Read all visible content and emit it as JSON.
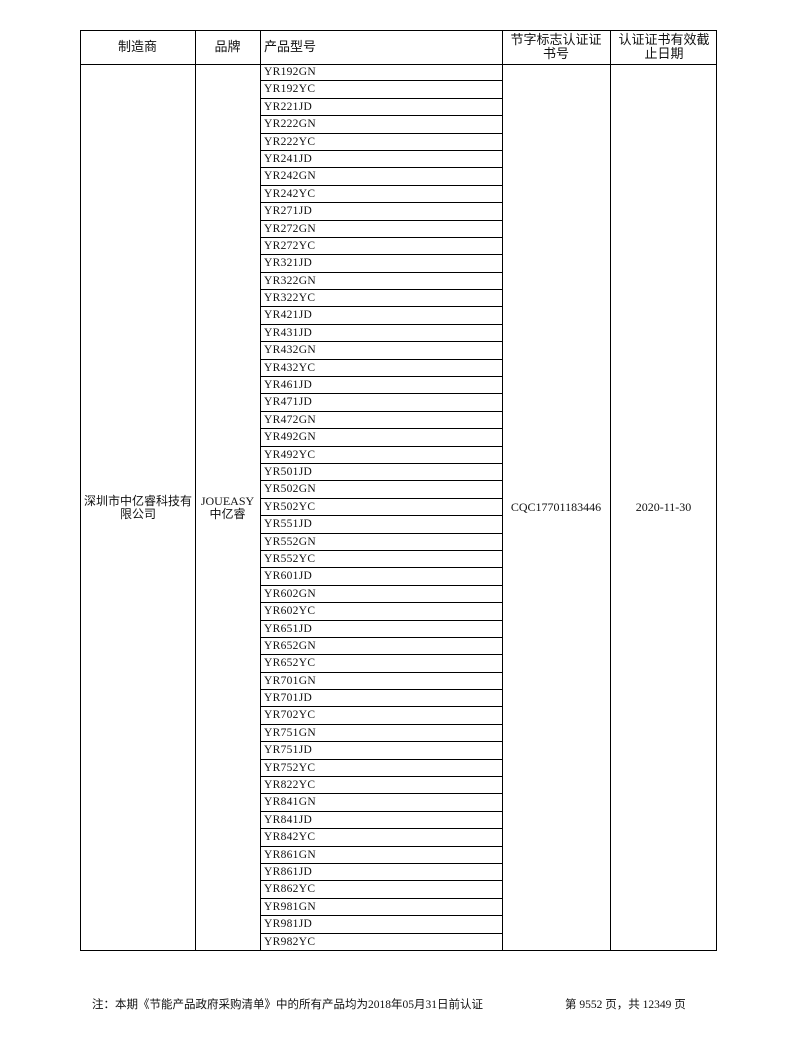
{
  "header": {
    "manufacturer": "制造商",
    "brand": "品牌",
    "model": "产品型号",
    "cert_no": "节字标志认证证书号",
    "expiry": "认证证书有效截止日期"
  },
  "row": {
    "manufacturer": "深圳市中亿睿科技有限公司",
    "brand": "JOUEASY 中亿睿",
    "cert_no": "CQC17701183446",
    "expiry": "2020-11-30",
    "models": [
      "YR192GN",
      "YR192YC",
      "YR221JD",
      "YR222GN",
      "YR222YC",
      "YR241JD",
      "YR242GN",
      "YR242YC",
      "YR271JD",
      "YR272GN",
      "YR272YC",
      "YR321JD",
      "YR322GN",
      "YR322YC",
      "YR421JD",
      "YR431JD",
      "YR432GN",
      "YR432YC",
      "YR461JD",
      "YR471JD",
      "YR472GN",
      "YR492GN",
      "YR492YC",
      "YR501JD",
      "YR502GN",
      "YR502YC",
      "YR551JD",
      "YR552GN",
      "YR552YC",
      "YR601JD",
      "YR602GN",
      "YR602YC",
      "YR651JD",
      "YR652GN",
      "YR652YC",
      "YR701GN",
      "YR701JD",
      "YR702YC",
      "YR751GN",
      "YR751JD",
      "YR752YC",
      "YR822YC",
      "YR841GN",
      "YR841JD",
      "YR842YC",
      "YR861GN",
      "YR861JD",
      "YR862YC",
      "YR981GN",
      "YR981JD",
      "YR982YC"
    ]
  },
  "footer": {
    "note": "注：本期《节能产品政府采购清单》中的所有产品均为2018年05月31日前认证",
    "page": "第 9552 页，共 12349 页"
  }
}
